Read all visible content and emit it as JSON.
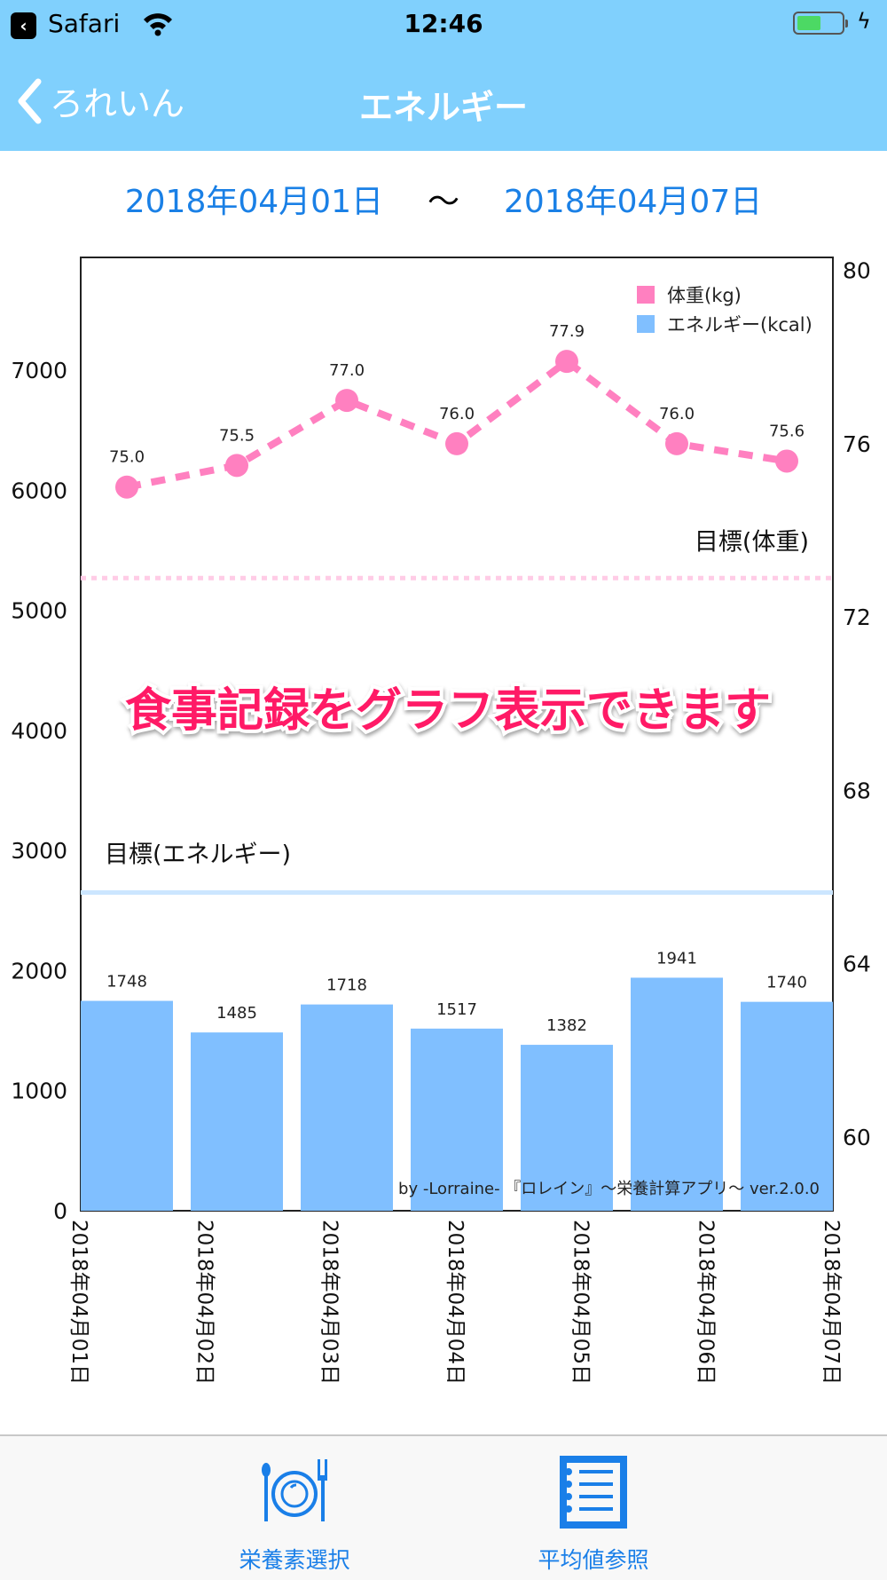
{
  "status_bar": {
    "app": "Safari",
    "time": "12:46",
    "battery_level": 0.5
  },
  "nav": {
    "back_label": "ろれいん",
    "title": "エネルギー"
  },
  "date_range": {
    "start": "2018年04月01日",
    "separator": "〜",
    "end": "2018年04月07日"
  },
  "overlay_caption": "食事記録をグラフ表示できます",
  "chart_data": {
    "type": "bar+line",
    "categories": [
      "2018年04月01日",
      "2018年04月02日",
      "2018年04月03日",
      "2018年04月04日",
      "2018年04月05日",
      "2018年04月06日",
      "2018年04月07日"
    ],
    "series": [
      {
        "name": "エネルギー(kcal)",
        "type": "bar",
        "axis": "left",
        "color": "#80bfff",
        "values": [
          1748,
          1485,
          1718,
          1517,
          1382,
          1941,
          1740
        ]
      },
      {
        "name": "体重(kg)",
        "type": "line",
        "axis": "right",
        "color": "#ff80c0",
        "values": [
          75.0,
          75.5,
          77.0,
          76.0,
          77.9,
          76.0,
          75.6
        ],
        "labels": [
          "75.0",
          "75.5",
          "77.0",
          "76.0",
          "77.9",
          "76.0",
          "75.6"
        ]
      }
    ],
    "left_axis": {
      "ticks": [
        0,
        1000,
        2000,
        3000,
        4000,
        5000,
        6000,
        7000
      ],
      "ylim": [
        0,
        7940
      ]
    },
    "right_axis": {
      "ticks": [
        60,
        64,
        68,
        72,
        76,
        80
      ],
      "ylim": [
        58.3,
        80.3
      ]
    },
    "targets": [
      {
        "label": "目標(エネルギー)",
        "axis": "left",
        "value": 2650,
        "color": "#cce6ff"
      },
      {
        "label": "目標(体重)",
        "axis": "right",
        "value": 72.9,
        "color": "#ffcce6"
      }
    ],
    "legend_placement": "top-right",
    "footer_text": "by -Lorraine- 『ロレイン』〜栄養計算アプリ〜 ver.2.0.0"
  },
  "tabbar": {
    "items": [
      {
        "label": "栄養素選択",
        "icon": "plate-cutlery-icon"
      },
      {
        "label": "平均値参照",
        "icon": "list-icon"
      }
    ]
  }
}
